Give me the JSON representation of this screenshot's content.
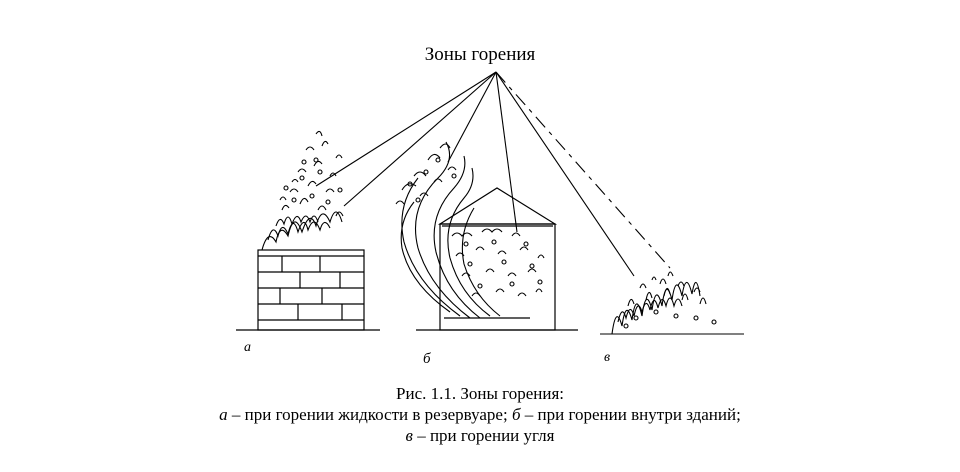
{
  "figure": {
    "pointer_label": "Зоны горения",
    "panels": [
      {
        "letter": "а"
      },
      {
        "letter": "б"
      },
      {
        "letter": "в"
      }
    ]
  },
  "caption": {
    "title": "Рис. 1.1. Зоны горения:",
    "line2": {
      "a_letter": "а",
      "a_text": " – при горении жидкости в резервуаре; ",
      "b_letter": "б",
      "b_text": " – при горении внутри зданий;"
    },
    "line3": {
      "v_letter": "в",
      "v_text": " – при горении угля"
    }
  }
}
